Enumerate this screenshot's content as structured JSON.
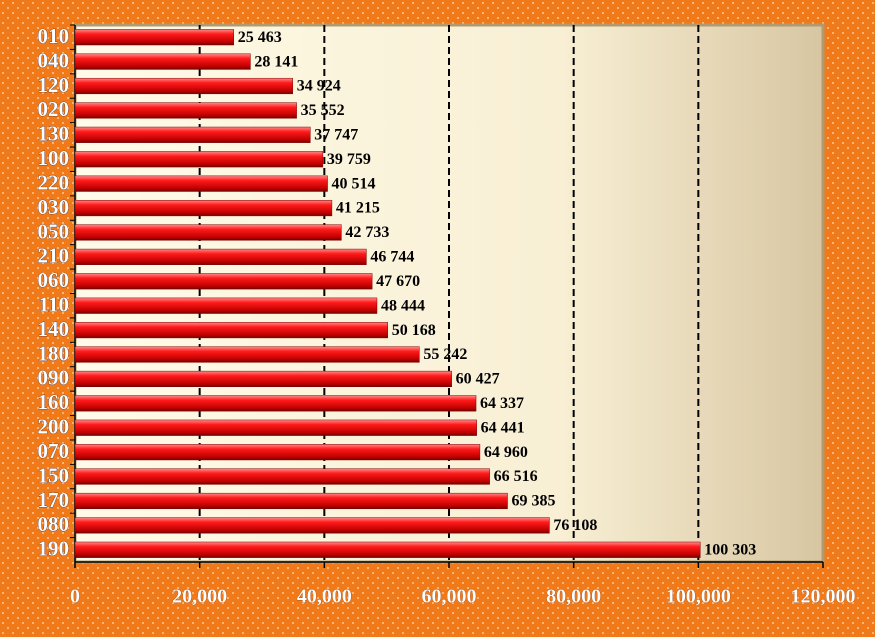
{
  "chart_data": {
    "type": "hbar",
    "categories": [
      "010",
      "040",
      "120",
      "020",
      "130",
      "100",
      "220",
      "030",
      "050",
      "210",
      "060",
      "110",
      "140",
      "180",
      "090",
      "160",
      "200",
      "070",
      "150",
      "170",
      "080",
      "190"
    ],
    "values": [
      25463,
      28141,
      34924,
      35552,
      37747,
      39759,
      40514,
      41215,
      42733,
      46744,
      47670,
      48444,
      50168,
      55242,
      60427,
      64337,
      64441,
      64960,
      66516,
      69385,
      76108,
      100303
    ],
    "value_labels": [
      "25 463",
      "28 141",
      "34 924",
      "35 552",
      "37 747",
      "39 759",
      "40 514",
      "41 215",
      "42 733",
      "46 744",
      "47 670",
      "48 444",
      "50 168",
      "55 242",
      "60 427",
      "64 337",
      "64 441",
      "64 960",
      "66 516",
      "69 385",
      "76 108",
      "100 303"
    ],
    "color": "#e00000",
    "xlim": [
      0,
      120000
    ],
    "xticks": [
      0,
      {
        "value": 20000,
        "label": "20,000"
      },
      {
        "value": 40000,
        "label": "40,000"
      },
      {
        "value": 60000,
        "label": "60,000"
      },
      {
        "value": 80000,
        "label": "80,000"
      },
      {
        "value": 100000,
        "label": "100,000"
      },
      {
        "value": 120000,
        "label": "120,000"
      }
    ],
    "grid": true
  }
}
